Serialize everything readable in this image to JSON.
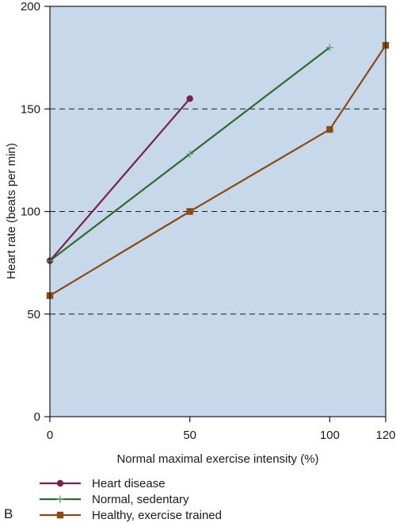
{
  "chart_data": {
    "type": "line",
    "title": "",
    "xlabel": "Normal maximal exercise intensity (%)",
    "ylabel": "Heart rate (beats per min)",
    "xlim": [
      0,
      120
    ],
    "ylim": [
      0,
      200
    ],
    "xticks": [
      0,
      50,
      100,
      120
    ],
    "yticks": [
      0,
      50,
      100,
      150,
      200
    ],
    "grid": {
      "y_dashed": [
        50,
        100,
        150
      ]
    },
    "plot_background": "#c6d8e9",
    "legend_position": "bottom-left",
    "series": [
      {
        "name": "Heart disease",
        "color": "#7b1f4e",
        "marker": "circle",
        "points": [
          {
            "x": 0,
            "y": 76
          },
          {
            "x": 50,
            "y": 155
          }
        ]
      },
      {
        "name": "Normal, sedentary",
        "color": "#2d6b2d",
        "marker": "plus",
        "points": [
          {
            "x": 0,
            "y": 76
          },
          {
            "x": 50,
            "y": 128
          },
          {
            "x": 100,
            "y": 180
          }
        ]
      },
      {
        "name": "Healthy, exercise trained",
        "color": "#8b4a12",
        "marker": "square",
        "points": [
          {
            "x": 0,
            "y": 59
          },
          {
            "x": 50,
            "y": 100
          },
          {
            "x": 100,
            "y": 140
          },
          {
            "x": 120,
            "y": 181
          }
        ]
      }
    ]
  },
  "panel_label": "B"
}
